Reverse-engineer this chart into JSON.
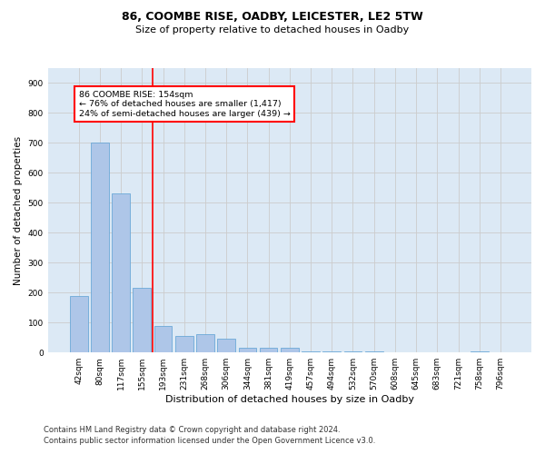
{
  "title1": "86, COOMBE RISE, OADBY, LEICESTER, LE2 5TW",
  "title2": "Size of property relative to detached houses in Oadby",
  "xlabel": "Distribution of detached houses by size in Oadby",
  "ylabel": "Number of detached properties",
  "categories": [
    "42sqm",
    "80sqm",
    "117sqm",
    "155sqm",
    "193sqm",
    "231sqm",
    "268sqm",
    "306sqm",
    "344sqm",
    "381sqm",
    "419sqm",
    "457sqm",
    "494sqm",
    "532sqm",
    "570sqm",
    "608sqm",
    "645sqm",
    "683sqm",
    "721sqm",
    "758sqm",
    "796sqm"
  ],
  "values": [
    190,
    700,
    530,
    215,
    90,
    55,
    60,
    45,
    15,
    15,
    15,
    5,
    5,
    5,
    5,
    0,
    0,
    0,
    0,
    5,
    0
  ],
  "bar_color": "#aec6e8",
  "bar_edge_color": "#5a9fd4",
  "annotation_text1": "86 COOMBE RISE: 154sqm",
  "annotation_text2": "← 76% of detached houses are smaller (1,417)",
  "annotation_text3": "24% of semi-detached houses are larger (439) →",
  "annotation_box_color": "white",
  "annotation_box_edgecolor": "red",
  "vline_color": "red",
  "vline_x": 3.5,
  "ylim": [
    0,
    950
  ],
  "yticks": [
    0,
    100,
    200,
    300,
    400,
    500,
    600,
    700,
    800,
    900
  ],
  "grid_color": "#cccccc",
  "bg_color": "#dce9f5",
  "title1_fontsize": 9,
  "title2_fontsize": 8,
  "ylabel_fontsize": 7.5,
  "xlabel_fontsize": 8,
  "tick_fontsize": 6.5,
  "footer1": "Contains HM Land Registry data © Crown copyright and database right 2024.",
  "footer2": "Contains public sector information licensed under the Open Government Licence v3.0.",
  "footer_fontsize": 6
}
